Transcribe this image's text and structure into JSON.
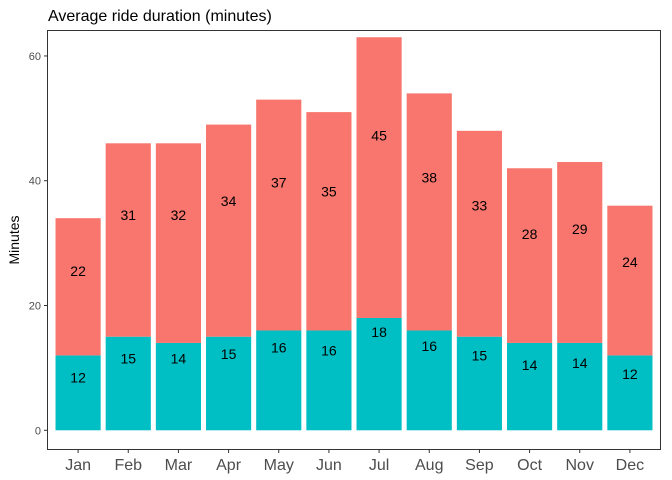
{
  "chart_data": {
    "type": "bar",
    "stacked": true,
    "title": "Average ride duration (minutes)",
    "xlabel": "",
    "ylabel": "Minutes",
    "ylim": [
      -3,
      64
    ],
    "yticks": [
      0,
      20,
      40,
      60
    ],
    "categories": [
      "Jan",
      "Feb",
      "Mar",
      "Apr",
      "May",
      "Jun",
      "Jul",
      "Aug",
      "Sep",
      "Oct",
      "Nov",
      "Dec"
    ],
    "series": [
      {
        "values": [
          12,
          15,
          14,
          15,
          16,
          16,
          18,
          16,
          15,
          14,
          14,
          12
        ],
        "color": "#00bfc4"
      },
      {
        "values": [
          22,
          31,
          32,
          34,
          37,
          35,
          45,
          38,
          33,
          28,
          29,
          24
        ],
        "color": "#f8766d"
      }
    ],
    "grid": false,
    "legend": "none"
  }
}
